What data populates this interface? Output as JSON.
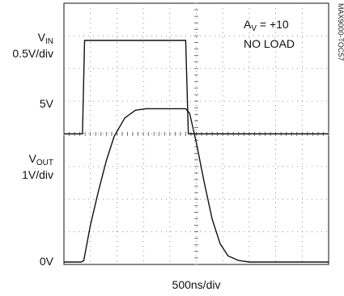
{
  "chart_data": {
    "type": "line",
    "grid": true,
    "grid_divisions": {
      "x": 10,
      "y": 8
    },
    "x_unit": "500ns/div",
    "traces": [
      {
        "label_main": "V",
        "label_sub": "IN",
        "scale": "0.5V/div",
        "points_div": [
          [
            0,
            1
          ],
          [
            0.7,
            1
          ],
          [
            0.78,
            2
          ],
          [
            4.6,
            2
          ],
          [
            4.7,
            1
          ],
          [
            10,
            1
          ]
        ]
      },
      {
        "label_main": "V",
        "label_sub": "OUT",
        "scale": "1V/div",
        "points_div": [
          [
            0,
            0
          ],
          [
            0.65,
            0
          ],
          [
            0.75,
            0.05
          ],
          [
            1.0,
            1.2
          ],
          [
            1.3,
            2.3
          ],
          [
            1.6,
            3.3
          ],
          [
            1.9,
            4.1
          ],
          [
            2.3,
            4.7
          ],
          [
            2.7,
            4.95
          ],
          [
            3.1,
            5.0
          ],
          [
            4.6,
            5.0
          ],
          [
            4.75,
            4.85
          ],
          [
            5.0,
            3.9
          ],
          [
            5.3,
            2.6
          ],
          [
            5.6,
            1.4
          ],
          [
            5.9,
            0.6
          ],
          [
            6.2,
            0.2
          ],
          [
            6.6,
            0.05
          ],
          [
            7.0,
            0
          ],
          [
            10,
            0
          ]
        ]
      }
    ],
    "y_ticks": [
      {
        "label": "5V",
        "div": 5
      },
      {
        "label": "0V",
        "div": 0
      }
    ],
    "annotation_main": "A",
    "annotation_sub": "V",
    "annotation_value": " = +10",
    "annotation_line2": "NO LOAD",
    "figure_id": "MAX9000-TOC57"
  }
}
